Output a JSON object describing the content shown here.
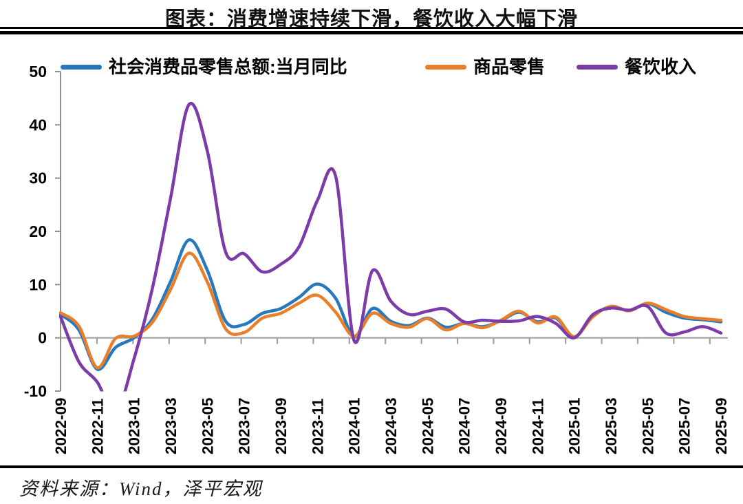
{
  "title": "图表：消费增速持续下滑，餐饮收入大幅下滑",
  "source": "资料来源：Wind，泽平宏观",
  "colors": {
    "series_blue": "#2878BD",
    "series_orange": "#E8802B",
    "series_purple": "#7B3CA8",
    "axis": "#8c8c8c",
    "zero_line": "#a0a0a0",
    "text": "#000000",
    "border": "#000000"
  },
  "chart_data": {
    "type": "line",
    "title": "图表：消费增速持续下滑，餐饮收入大幅下滑",
    "x": [
      "2022-09",
      "2022-10",
      "2022-11",
      "2022-12",
      "2023-01",
      "2023-02",
      "2023-03",
      "2023-04",
      "2023-05",
      "2023-06",
      "2023-07",
      "2023-08",
      "2023-09",
      "2023-10",
      "2023-11",
      "2023-12",
      "2024-01",
      "2024-02",
      "2024-03",
      "2024-04",
      "2024-05",
      "2024-06",
      "2024-07",
      "2024-08",
      "2024-09",
      "2024-10",
      "2024-11",
      "2024-12",
      "2025-01",
      "2025-02",
      "2025-03",
      "2025-04",
      "2025-05",
      "2025-06",
      "2025-07",
      "2025-08",
      "2025-09"
    ],
    "xtick_labels": [
      "2022-09",
      "2022-11",
      "2023-01",
      "2023-03",
      "2023-05",
      "2023-07",
      "2023-09",
      "2023-11",
      "2024-01",
      "2024-03",
      "2024-05",
      "2024-07",
      "2024-09",
      "2024-11",
      "2025-01",
      "2025-03",
      "2025-05",
      "2025-07",
      "2025-09"
    ],
    "series": [
      {
        "name": "社会消费品零售总额:当月同比",
        "color": "#2878BD",
        "values": [
          4.4,
          1.5,
          -5.9,
          -1.8,
          0.0,
          3.5,
          10.6,
          18.4,
          12.7,
          3.1,
          2.5,
          4.6,
          5.5,
          7.6,
          10.1,
          7.4,
          0.3,
          5.5,
          3.1,
          2.3,
          3.7,
          2.0,
          2.7,
          2.1,
          3.2,
          4.8,
          3.0,
          3.7,
          0.2,
          4.0,
          5.9,
          5.1,
          6.4,
          4.8,
          3.7,
          3.4,
          3.0
        ]
      },
      {
        "name": "商品零售",
        "color": "#E8802B",
        "values": [
          4.7,
          2.2,
          -5.6,
          -0.1,
          0.3,
          2.9,
          9.1,
          15.9,
          10.5,
          1.7,
          1.0,
          3.7,
          4.6,
          6.5,
          8.0,
          4.8,
          0.3,
          4.6,
          2.7,
          2.0,
          3.6,
          1.5,
          2.7,
          1.9,
          3.3,
          5.0,
          2.8,
          3.9,
          0.2,
          3.9,
          5.9,
          5.1,
          6.5,
          5.3,
          4.0,
          3.6,
          3.3
        ]
      },
      {
        "name": "餐饮收入",
        "color": "#7B3CA8",
        "values": [
          4.0,
          -4.5,
          -8.3,
          -14.1,
          -4.0,
          9.2,
          26.3,
          43.8,
          35.1,
          16.1,
          15.8,
          12.4,
          13.8,
          17.1,
          25.8,
          30.3,
          -0.5,
          12.6,
          6.9,
          4.4,
          5.0,
          5.4,
          3.0,
          3.3,
          3.1,
          3.2,
          4.0,
          2.7,
          0.0,
          4.3,
          5.6,
          5.2,
          5.9,
          0.9,
          1.1,
          2.1,
          0.9
        ]
      }
    ],
    "ylabel": "",
    "xlabel": "",
    "ylim": [
      -10,
      50
    ],
    "yticks": [
      -10,
      0,
      10,
      20,
      30,
      40,
      50
    ],
    "grid": false,
    "legend_position": "top",
    "zero_axis_with_ticks": true
  }
}
